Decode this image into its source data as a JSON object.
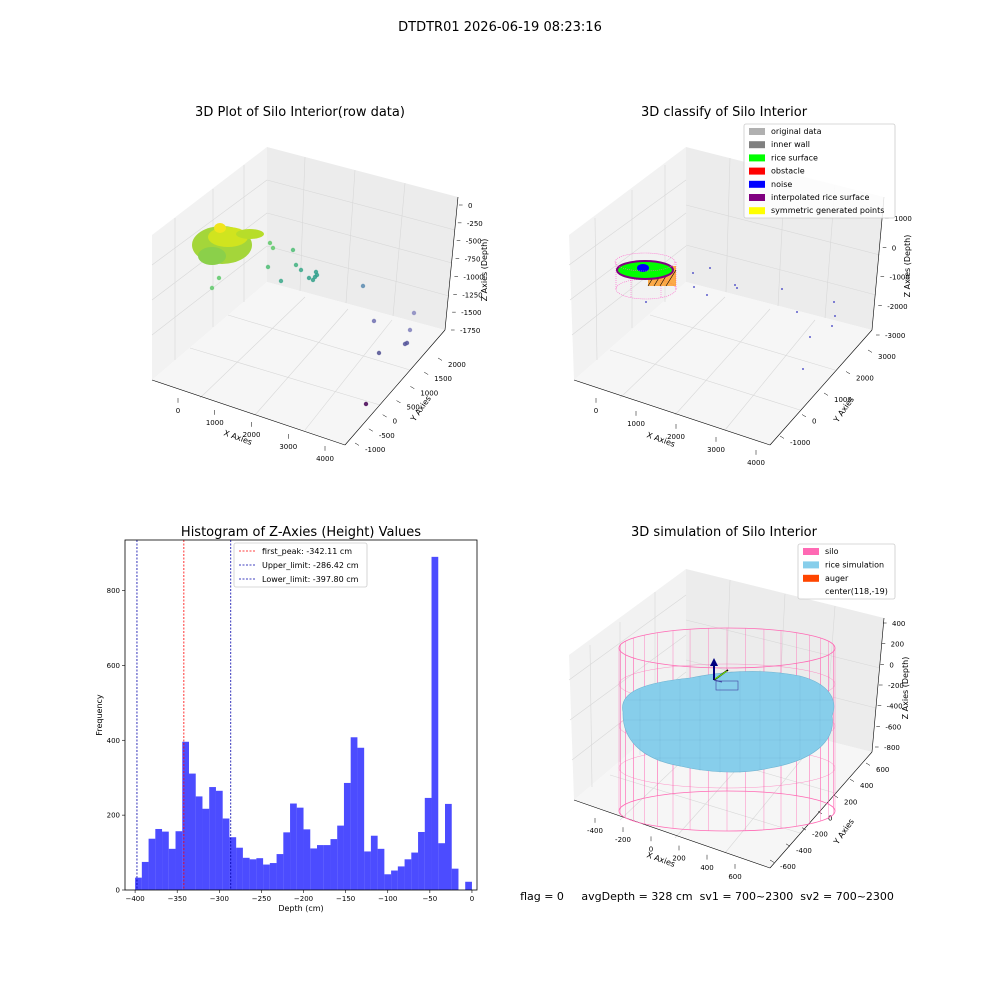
{
  "figure": {
    "suptitle": "DTDTR01 2026-06-19 08:23:16"
  },
  "panels": {
    "raw3d": {
      "title": "3D Plot of Silo Interior(row data)",
      "xlabel": "X Axies",
      "ylabel": "Y Axies",
      "zlabel": "Z Axies (Depth)",
      "xticks": [
        "0",
        "1000",
        "2000",
        "3000",
        "4000"
      ],
      "yticks": [
        "-1000",
        "-500",
        "0",
        "500",
        "1000",
        "1500",
        "2000"
      ],
      "zticks": [
        "0",
        "-250",
        "-500",
        "-750",
        "-1000",
        "-1250",
        "-1500",
        "-1750"
      ]
    },
    "classify3d": {
      "title": "3D classify of Silo Interior",
      "xlabel": "X Axies",
      "ylabel": "Y Axies",
      "zlabel": "Z Axies (Depth)",
      "xticks": [
        "0",
        "1000",
        "2000",
        "3000",
        "4000"
      ],
      "yticks": [
        "-1000",
        "0",
        "1000",
        "2000",
        "3000"
      ],
      "zticks": [
        "1000",
        "0",
        "-1000",
        "-2000",
        "-3000"
      ],
      "legend": [
        {
          "label": "original data",
          "color": "#b0b0b0"
        },
        {
          "label": "inner wall",
          "color": "#808080"
        },
        {
          "label": "rice surface",
          "color": "#00ff00"
        },
        {
          "label": "obstacle",
          "color": "#ff0000"
        },
        {
          "label": "noise",
          "color": "#0000ff"
        },
        {
          "label": "interpolated rice surface",
          "color": "#800080"
        },
        {
          "label": "symmetric generated points",
          "color": "#ffff00"
        }
      ]
    },
    "sim3d": {
      "title": "3D simulation of Silo Interior",
      "xlabel": "X Axies",
      "ylabel": "Y Axies",
      "zlabel": "Z Axies (Depth)",
      "xticks": [
        "-400",
        "-200",
        "0",
        "200",
        "400",
        "600"
      ],
      "yticks": [
        "-600",
        "-400",
        "-200",
        "0",
        "200",
        "400",
        "600"
      ],
      "zticks": [
        "400",
        "200",
        "0",
        "-200",
        "-400",
        "-600",
        "-800"
      ],
      "legend": [
        {
          "label": "silo",
          "color": "#ff69b4"
        },
        {
          "label": "rice simulation",
          "color": "#87ceeb"
        },
        {
          "label": "auger",
          "color": "#ff4500"
        },
        {
          "label": "center(118,-19)",
          "color": ""
        }
      ]
    }
  },
  "chart_data": [
    {
      "type": "histogram",
      "title": "Histogram of Z-Axies (Height) Values",
      "xlabel": "Depth (cm)",
      "ylabel": "Frequency",
      "xlim": [
        -412,
        6
      ],
      "ylim": [
        0,
        935
      ],
      "xticks": [
        -400,
        -350,
        -300,
        -250,
        -200,
        -150,
        -100,
        -50,
        0
      ],
      "yticks": [
        0,
        200,
        400,
        600,
        800
      ],
      "bar_color": "#0000ff",
      "bin_start": -400,
      "bin_width": 8,
      "counts": [
        33,
        75,
        137,
        163,
        156,
        110,
        157,
        396,
        311,
        250,
        217,
        275,
        265,
        191,
        141,
        113,
        86,
        82,
        85,
        68,
        72,
        96,
        154,
        231,
        220,
        162,
        111,
        120,
        120,
        136,
        172,
        286,
        408,
        380,
        103,
        145,
        110,
        42,
        52,
        63,
        82,
        100,
        155,
        246,
        890,
        125,
        230,
        57,
        0,
        22
      ],
      "vlines": [
        {
          "label": "first_peak: -342.11 cm",
          "x": -342.11,
          "color": "#ff0000"
        },
        {
          "label": "Upper_limit: -286.42 cm",
          "x": -286.42,
          "color": "#0000aa"
        },
        {
          "label": "Lower_limit: -397.80 cm",
          "x": -397.8,
          "color": "#0000aa"
        }
      ]
    }
  ],
  "status": {
    "text": "flag = 0     avgDepth = 328 cm  sv1 = 700~2300  sv2 = 700~2300"
  }
}
